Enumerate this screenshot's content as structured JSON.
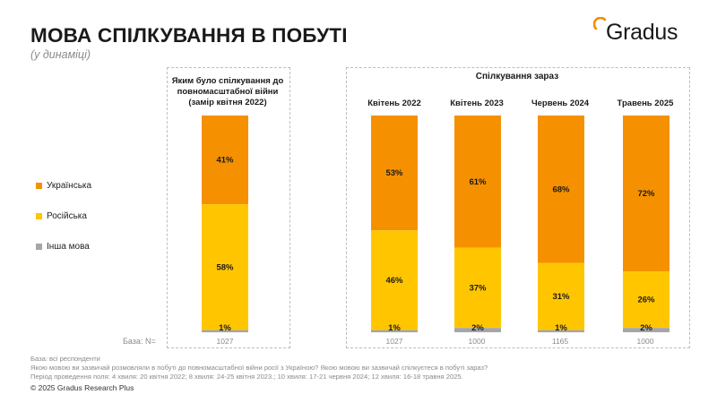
{
  "title": "МОВА СПІЛКУВАННЯ В ПОБУТІ",
  "subtitle": "(у динаміці)",
  "logo": {
    "text": "Gradus",
    "accent_color": "#f28c00"
  },
  "group_header_now": "Спілкування зараз",
  "legend": [
    {
      "label": "Українська",
      "color": "#f59100"
    },
    {
      "label": "Російська",
      "color": "#ffc600"
    },
    {
      "label": "Інша мова",
      "color": "#a6a6a6"
    }
  ],
  "base_label": "База: N=",
  "footer": {
    "line1": "База: всі респонденти",
    "line2": "Якою мовою ви зазвичай розмовляли в побуті до повномасштабної війни росії з Україною? Якою мовою ви зазвичай спілкуєтеся в побуті зараз?",
    "line3": "Період проведення поля: 4 хвиля: 20 квітня 2022; 8 хвиля: 24-25 квітня 2023.; 10 хвиля: 17-21 червня 2024; 12 хвиля: 16-18 травня 2025."
  },
  "copyright": "© 2025 Gradus Research Plus",
  "chart_data": {
    "type": "bar",
    "stacked": true,
    "percent": true,
    "categories": [
      "Яким було спілкування до повномасштабної війни (замір квітня 2022)",
      "Квітень 2022",
      "Квітень 2023",
      "Червень 2024",
      "Травень 2025"
    ],
    "series": [
      {
        "name": "Українська",
        "color": "#f59100",
        "values": [
          41,
          53,
          61,
          68,
          72
        ]
      },
      {
        "name": "Російська",
        "color": "#ffc600",
        "values": [
          58,
          46,
          37,
          31,
          26
        ]
      },
      {
        "name": "Інша мова",
        "color": "#a6a6a6",
        "values": [
          1,
          1,
          2,
          1,
          2
        ]
      }
    ],
    "data_labels": {
      "Українська": [
        "41%",
        "53%",
        "61%",
        "68%",
        "72%"
      ],
      "Російська": [
        "58%",
        "46%",
        "37%",
        "31%",
        "26%"
      ],
      "Інша мова": [
        "1%",
        "1%",
        "2%",
        "1%",
        "2%"
      ]
    },
    "base_n": [
      "1027",
      "1027",
      "1000",
      "1165",
      "1000"
    ],
    "ylim": [
      0,
      100
    ],
    "legend_position": "left",
    "grid": false
  }
}
